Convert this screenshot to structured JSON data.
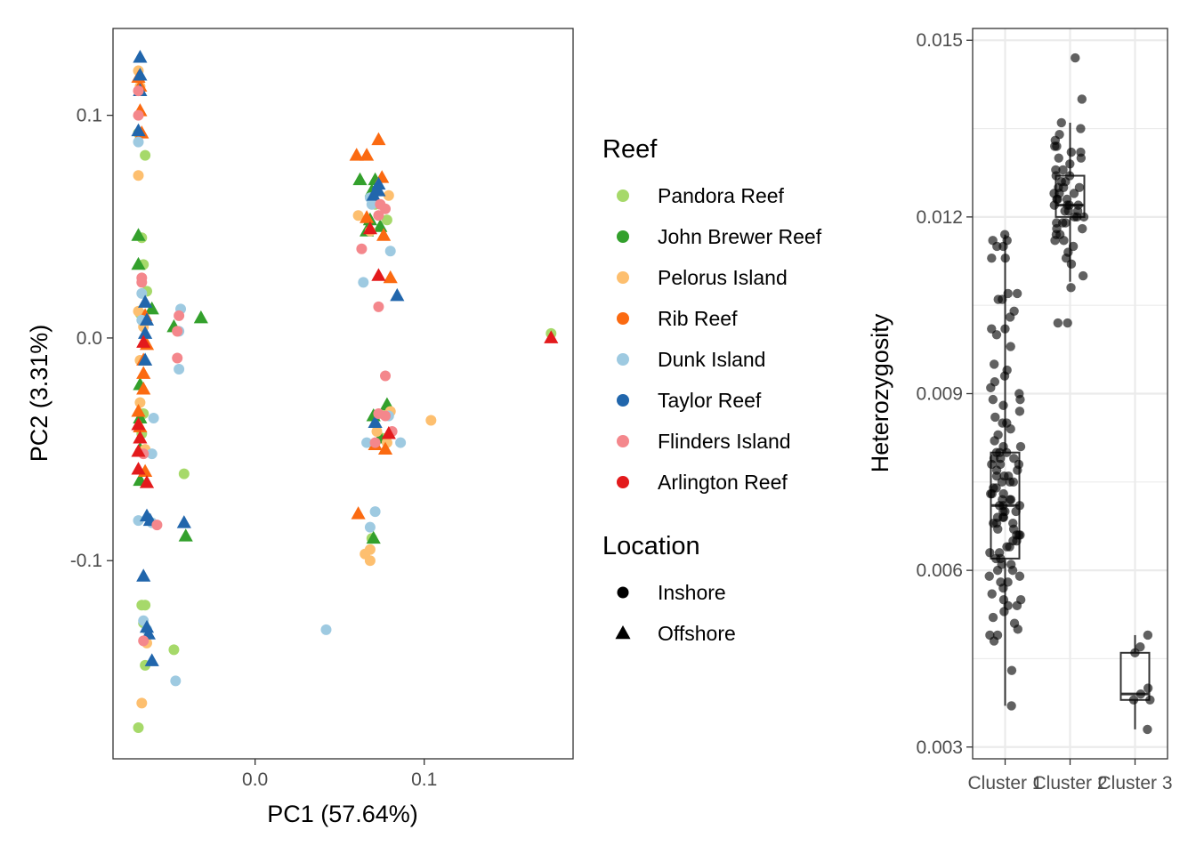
{
  "chart_data": [
    {
      "type": "scatter",
      "xlabel": "PC1 (57.64%)",
      "ylabel": "PC2 (3.31%)",
      "xlim": [
        -0.084,
        0.188
      ],
      "ylim": [
        -0.189,
        0.139
      ],
      "xticks": [
        0.0,
        0.1
      ],
      "xtick_labels": [
        "0.0",
        "0.1"
      ],
      "yticks": [
        -0.1,
        0.0,
        0.1
      ],
      "ytick_labels": [
        "-0.1",
        "0.0",
        "0.1"
      ],
      "grid": false,
      "legend": {
        "placement": "right",
        "color_title": "Reef",
        "shape_title": "Location",
        "shape_entries": [
          {
            "name": "Inshore",
            "shape": "circle"
          },
          {
            "name": "Offshore",
            "shape": "triangle"
          }
        ]
      },
      "series": [
        {
          "name": "Pandora Reef",
          "color": "#a6d96a",
          "shape": "circle",
          "points": [
            [
              -0.069,
              0.092
            ],
            [
              -0.065,
              0.082
            ],
            [
              -0.067,
              0.045
            ],
            [
              -0.066,
              0.033
            ],
            [
              -0.064,
              0.021
            ],
            [
              -0.068,
              0.011
            ],
            [
              -0.066,
              -0.034
            ],
            [
              -0.067,
              -0.043
            ],
            [
              -0.042,
              -0.061
            ],
            [
              -0.068,
              -0.051
            ],
            [
              -0.067,
              -0.12
            ],
            [
              -0.065,
              -0.12
            ],
            [
              -0.066,
              -0.128
            ],
            [
              -0.065,
              -0.147
            ],
            [
              -0.048,
              -0.14
            ],
            [
              -0.069,
              -0.175
            ],
            [
              0.175,
              0.002
            ],
            [
              0.078,
              0.053
            ],
            [
              0.071,
              0.06
            ],
            [
              0.078,
              -0.034
            ],
            [
              0.075,
              -0.045
            ],
            [
              0.069,
              -0.09
            ]
          ]
        },
        {
          "name": "John Brewer Reef",
          "color": "#33a02c",
          "shape": "triangle",
          "points": [
            [
              -0.069,
              0.046
            ],
            [
              -0.069,
              0.033
            ],
            [
              -0.061,
              0.013
            ],
            [
              -0.048,
              0.005
            ],
            [
              -0.032,
              0.009
            ],
            [
              -0.068,
              -0.021
            ],
            [
              -0.068,
              -0.036
            ],
            [
              -0.068,
              -0.05
            ],
            [
              -0.068,
              -0.064
            ],
            [
              -0.041,
              -0.089
            ],
            [
              0.062,
              0.071
            ],
            [
              0.069,
              0.066
            ],
            [
              0.071,
              0.071
            ],
            [
              0.066,
              0.048
            ],
            [
              0.074,
              0.05
            ],
            [
              0.068,
              0.053
            ],
            [
              0.07,
              -0.035
            ],
            [
              0.074,
              -0.045
            ],
            [
              0.07,
              -0.09
            ],
            [
              0.078,
              -0.03
            ]
          ]
        },
        {
          "name": "Pelorus Island",
          "color": "#fdbf6f",
          "shape": "circle",
          "points": [
            [
              -0.069,
              0.12
            ],
            [
              -0.068,
              0.113
            ],
            [
              -0.069,
              0.073
            ],
            [
              -0.069,
              0.012
            ],
            [
              -0.066,
              0.005
            ],
            [
              -0.068,
              -0.01
            ],
            [
              -0.068,
              -0.029
            ],
            [
              -0.065,
              -0.05
            ],
            [
              -0.064,
              -0.137
            ],
            [
              -0.067,
              -0.164
            ],
            [
              -0.046,
              0.003
            ],
            [
              0.061,
              0.055
            ],
            [
              0.068,
              0.048
            ],
            [
              0.079,
              0.064
            ],
            [
              0.08,
              -0.033
            ],
            [
              0.104,
              -0.037
            ],
            [
              0.072,
              -0.042
            ],
            [
              0.068,
              -0.095
            ],
            [
              0.065,
              -0.097
            ],
            [
              0.068,
              -0.1
            ],
            [
              0.078,
              -0.047
            ]
          ]
        },
        {
          "name": "Rib Reef",
          "color": "#fb6a11",
          "shape": "triangle",
          "points": [
            [
              -0.069,
              0.117
            ],
            [
              -0.068,
              0.102
            ],
            [
              -0.067,
              0.092
            ],
            [
              -0.068,
              0.113
            ],
            [
              -0.065,
              0.01
            ],
            [
              -0.064,
              -0.003
            ],
            [
              -0.066,
              -0.01
            ],
            [
              -0.066,
              -0.016
            ],
            [
              -0.066,
              -0.023
            ],
            [
              -0.069,
              -0.033
            ],
            [
              -0.068,
              -0.04
            ],
            [
              -0.065,
              -0.06
            ],
            [
              0.06,
              0.082
            ],
            [
              0.066,
              0.082
            ],
            [
              0.073,
              0.089
            ],
            [
              0.075,
              0.072
            ],
            [
              0.072,
              0.061
            ],
            [
              0.066,
              0.054
            ],
            [
              0.076,
              0.046
            ],
            [
              0.08,
              0.027
            ],
            [
              0.077,
              -0.05
            ],
            [
              0.071,
              -0.048
            ],
            [
              0.061,
              -0.079
            ]
          ]
        },
        {
          "name": "Dunk Island",
          "color": "#9ecae1",
          "shape": "circle",
          "points": [
            [
              -0.069,
              0.088
            ],
            [
              -0.067,
              0.02
            ],
            [
              -0.067,
              0.008
            ],
            [
              -0.045,
              0.003
            ],
            [
              -0.045,
              -0.014
            ],
            [
              -0.06,
              -0.036
            ],
            [
              -0.061,
              -0.052
            ],
            [
              -0.069,
              -0.082
            ],
            [
              -0.061,
              -0.083
            ],
            [
              -0.066,
              -0.127
            ],
            [
              -0.064,
              -0.131
            ],
            [
              -0.044,
              0.013
            ],
            [
              0.042,
              -0.131
            ],
            [
              -0.047,
              -0.154
            ],
            [
              0.068,
              0.063
            ],
            [
              0.069,
              0.06
            ],
            [
              0.08,
              0.039
            ],
            [
              0.064,
              0.025
            ],
            [
              0.066,
              -0.047
            ],
            [
              0.086,
              -0.047
            ],
            [
              0.079,
              -0.035
            ],
            [
              0.071,
              -0.078
            ],
            [
              0.068,
              -0.085
            ]
          ]
        },
        {
          "name": "Taylor Reef",
          "color": "#2166ac",
          "shape": "triangle",
          "points": [
            [
              -0.068,
              0.126
            ],
            [
              -0.068,
              0.118
            ],
            [
              -0.068,
              0.111
            ],
            [
              -0.069,
              0.093
            ],
            [
              -0.065,
              0.016
            ],
            [
              -0.064,
              0.008
            ],
            [
              -0.065,
              0.002
            ],
            [
              -0.065,
              -0.01
            ],
            [
              -0.064,
              -0.08
            ],
            [
              -0.062,
              -0.082
            ],
            [
              -0.042,
              -0.083
            ],
            [
              -0.066,
              -0.107
            ],
            [
              -0.064,
              -0.13
            ],
            [
              -0.063,
              -0.133
            ],
            [
              -0.061,
              -0.145
            ],
            [
              0.07,
              0.064
            ],
            [
              0.073,
              0.069
            ],
            [
              0.084,
              0.019
            ],
            [
              0.071,
              -0.038
            ],
            [
              0.073,
              0.066
            ]
          ]
        },
        {
          "name": "Flinders Island",
          "color": "#f4878c",
          "shape": "circle",
          "points": [
            [
              -0.069,
              0.111
            ],
            [
              -0.069,
              0.1
            ],
            [
              -0.067,
              0.027
            ],
            [
              -0.067,
              0.025
            ],
            [
              -0.045,
              0.01
            ],
            [
              -0.046,
              0.003
            ],
            [
              -0.046,
              -0.009
            ],
            [
              -0.066,
              -0.052
            ],
            [
              -0.058,
              -0.084
            ],
            [
              -0.066,
              -0.136
            ],
            [
              0.073,
              0.055
            ],
            [
              0.077,
              0.058
            ],
            [
              0.074,
              0.06
            ],
            [
              0.063,
              0.04
            ],
            [
              0.073,
              0.014
            ],
            [
              0.077,
              -0.017
            ],
            [
              0.077,
              -0.035
            ],
            [
              0.073,
              -0.034
            ],
            [
              0.071,
              -0.047
            ],
            [
              0.081,
              -0.042
            ]
          ]
        },
        {
          "name": "Arlington Reef",
          "color": "#e31a1c",
          "shape": "triangle",
          "points": [
            [
              -0.066,
              -0.002
            ],
            [
              -0.069,
              -0.039
            ],
            [
              -0.068,
              -0.045
            ],
            [
              -0.069,
              -0.051
            ],
            [
              -0.069,
              -0.059
            ],
            [
              -0.064,
              -0.065
            ],
            [
              0.068,
              0.049
            ],
            [
              0.073,
              0.028
            ],
            [
              0.079,
              -0.043
            ],
            [
              0.175,
              0.0
            ]
          ]
        }
      ]
    },
    {
      "type": "box",
      "ylabel": "Heterozygosity",
      "categories": [
        "Cluster 1",
        "Cluster 2",
        "Cluster 3"
      ],
      "ylim": [
        0.0028,
        0.0152
      ],
      "yticks": [
        0.003,
        0.006,
        0.009,
        0.012,
        0.015
      ],
      "ytick_labels": [
        "0.003",
        "0.006",
        "0.009",
        "0.012",
        "0.015"
      ],
      "grid": true,
      "point_color": "#000000",
      "boxes": [
        {
          "category": "Cluster 1",
          "whisker_low": 0.0037,
          "q1": 0.0062,
          "median": 0.0071,
          "q3": 0.008,
          "whisker_high": 0.0117
        },
        {
          "category": "Cluster 2",
          "whisker_low": 0.0109,
          "q1": 0.012,
          "median": 0.0122,
          "q3": 0.0127,
          "whisker_high": 0.0136
        },
        {
          "category": "Cluster 3",
          "whisker_low": 0.0033,
          "q1": 0.0038,
          "median": 0.0039,
          "q3": 0.0046,
          "whisker_high": 0.0049
        }
      ],
      "points": [
        {
          "category": "Cluster 1",
          "values": [
            0.0117,
            0.0116,
            0.0116,
            0.0115,
            0.0115,
            0.0113,
            0.0113,
            0.0107,
            0.0107,
            0.0106,
            0.0106,
            0.0104,
            0.0103,
            0.0101,
            0.0101,
            0.01,
            0.0098,
            0.0095,
            0.0094,
            0.0093,
            0.0092,
            0.0091,
            0.009,
            0.0089,
            0.0089,
            0.0088,
            0.0087,
            0.0086,
            0.0085,
            0.0085,
            0.0084,
            0.0083,
            0.0082,
            0.0081,
            0.0081,
            0.008,
            0.008,
            0.008,
            0.0079,
            0.0079,
            0.0079,
            0.0078,
            0.0078,
            0.0078,
            0.0077,
            0.0077,
            0.0076,
            0.0076,
            0.0076,
            0.0075,
            0.0075,
            0.0075,
            0.0074,
            0.0074,
            0.0073,
            0.0073,
            0.0073,
            0.0072,
            0.0072,
            0.0072,
            0.0071,
            0.0071,
            0.0071,
            0.007,
            0.007,
            0.007,
            0.0069,
            0.0069,
            0.0069,
            0.0068,
            0.0068,
            0.0068,
            0.0067,
            0.0067,
            0.0066,
            0.0066,
            0.0066,
            0.0065,
            0.0065,
            0.0064,
            0.0064,
            0.0063,
            0.0063,
            0.0062,
            0.0062,
            0.0061,
            0.0061,
            0.006,
            0.006,
            0.0059,
            0.0059,
            0.0058,
            0.0058,
            0.0057,
            0.0056,
            0.0055,
            0.0055,
            0.0054,
            0.0054,
            0.0053,
            0.0052,
            0.0051,
            0.005,
            0.0049,
            0.0049,
            0.0048,
            0.0043,
            0.0037
          ]
        },
        {
          "category": "Cluster 2",
          "values": [
            0.0147,
            0.014,
            0.0136,
            0.0135,
            0.0134,
            0.0133,
            0.0132,
            0.0132,
            0.0131,
            0.0131,
            0.013,
            0.013,
            0.0129,
            0.0128,
            0.0128,
            0.0127,
            0.0127,
            0.0126,
            0.0126,
            0.0125,
            0.0125,
            0.0125,
            0.0124,
            0.0124,
            0.0124,
            0.0123,
            0.0123,
            0.0123,
            0.0122,
            0.0122,
            0.0122,
            0.0122,
            0.0121,
            0.0121,
            0.0121,
            0.012,
            0.012,
            0.012,
            0.0119,
            0.0119,
            0.0119,
            0.0118,
            0.0118,
            0.0117,
            0.0117,
            0.0116,
            0.0116,
            0.0115,
            0.0114,
            0.0113,
            0.0112,
            0.011,
            0.0108,
            0.0102,
            0.0102
          ]
        },
        {
          "category": "Cluster 3",
          "values": [
            0.0049,
            0.0047,
            0.0046,
            0.004,
            0.0039,
            0.0038,
            0.0038,
            0.0033
          ]
        }
      ]
    }
  ]
}
